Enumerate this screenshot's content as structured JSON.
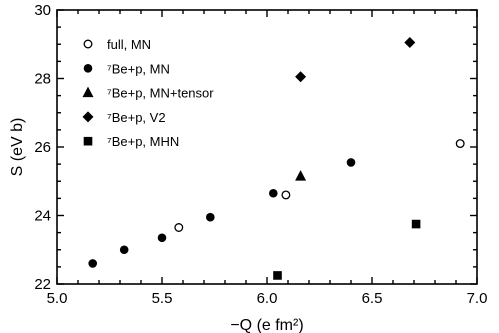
{
  "chart_data": {
    "type": "scatter",
    "title": "",
    "xlabel": "−Q (e fm²)",
    "ylabel": "S (eV b)",
    "xlim": [
      5.0,
      7.0
    ],
    "ylim": [
      22,
      30
    ],
    "xticks": [
      5.0,
      5.5,
      6.0,
      6.5,
      7.0
    ],
    "xtick_labels": [
      "5.0",
      "5.5",
      "6.0",
      "6.5",
      "7.0"
    ],
    "yticks": [
      22,
      24,
      26,
      28,
      30
    ],
    "ytick_labels": [
      "22",
      "24",
      "26",
      "28",
      "30"
    ],
    "grid": false,
    "legend_position": "top-left",
    "series": [
      {
        "name": "full, MN",
        "marker": "open-circle",
        "points": [
          [
            5.58,
            23.65
          ],
          [
            6.09,
            24.6
          ],
          [
            6.92,
            26.1
          ]
        ]
      },
      {
        "name": "⁷Be+p, MN",
        "marker": "filled-circle",
        "points": [
          [
            5.17,
            22.6
          ],
          [
            5.32,
            23.0
          ],
          [
            5.5,
            23.35
          ],
          [
            5.73,
            23.95
          ],
          [
            6.03,
            24.65
          ],
          [
            6.4,
            25.55
          ]
        ]
      },
      {
        "name": "⁷Be+p, MN+tensor",
        "marker": "filled-triangle",
        "points": [
          [
            6.16,
            25.15
          ]
        ]
      },
      {
        "name": "⁷Be+p, V2",
        "marker": "filled-diamond",
        "points": [
          [
            6.16,
            28.05
          ],
          [
            6.68,
            29.05
          ]
        ]
      },
      {
        "name": "⁷Be+p, MHN",
        "marker": "filled-square",
        "points": [
          [
            6.05,
            22.25
          ],
          [
            6.71,
            23.75
          ]
        ]
      }
    ]
  }
}
